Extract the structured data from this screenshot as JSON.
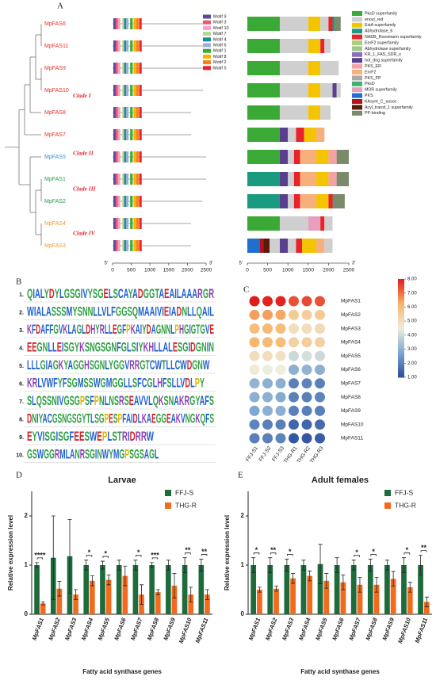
{
  "panel_labels": [
    "A",
    "B",
    "C",
    "D",
    "E"
  ],
  "phylogeny": {
    "genes": [
      {
        "name": "MpFAS6",
        "color": "#e8322a",
        "length": 2420
      },
      {
        "name": "MpFAS11",
        "color": "#e8322a",
        "length": 2420
      },
      {
        "name": "MpFAS9",
        "color": "#e8322a",
        "length": 2420
      },
      {
        "name": "MpFAS10",
        "color": "#e8322a",
        "length": 2420
      },
      {
        "name": "MpFAS8",
        "color": "#e8322a",
        "length": 2100
      },
      {
        "name": "MpFAS7",
        "color": "#e8322a",
        "length": 2100
      },
      {
        "name": "MpFAS5",
        "color": "#3a8fd0",
        "length": 2500
      },
      {
        "name": "MpFAS1",
        "color": "#2e9a4a",
        "length": 2500
      },
      {
        "name": "MpFAS2",
        "color": "#2e9a4a",
        "length": 2400
      },
      {
        "name": "MpFAS4",
        "color": "#f39a2a",
        "length": 2100
      },
      {
        "name": "MpFAS3",
        "color": "#f39a2a",
        "length": 2100
      }
    ],
    "clades": [
      "Clade I",
      "Clade II",
      "Clade III",
      "Clade IV"
    ]
  },
  "motif_legend": [
    {
      "name": "Motif 9",
      "color": "#5b4a9a",
      "start": 20
    },
    {
      "name": "Motif 3",
      "color": "#e8587a",
      "start": 80
    },
    {
      "name": "Motif 10",
      "color": "#f4a3c0",
      "start": 140
    },
    {
      "name": "Motif 7",
      "color": "#b5d98a",
      "start": 260
    },
    {
      "name": "Motif 4",
      "color": "#1a8a9e",
      "start": 310
    },
    {
      "name": "Motif 6",
      "color": "#9ab0d8",
      "start": 360
    },
    {
      "name": "Motif 1",
      "color": "#3aa935",
      "start": 470
    },
    {
      "name": "Motif 8",
      "color": "#f5b400",
      "start": 560
    },
    {
      "name": "Motif 2",
      "color": "#f77f1c",
      "start": 630
    },
    {
      "name": "Motif 5",
      "color": "#e8232a",
      "start": 710
    }
  ],
  "domain_legend": [
    {
      "name": "PksD superfamily",
      "color": "#3aa935"
    },
    {
      "name": "enoyl_red",
      "color": "#cfcfcf"
    },
    {
      "name": "EstA superfamily",
      "color": "#f5c400"
    },
    {
      "name": "Abhydrolase_6",
      "color": "#1a9a7e"
    },
    {
      "name": "NADB_Rossmann superfamily",
      "color": "#e8232a"
    },
    {
      "name": "EnrF2 superfamily",
      "color": "#aacf7a"
    },
    {
      "name": "Abhydrolase superfamily",
      "color": "#9ec98a"
    },
    {
      "name": "KR_1_FAS_SDR_x",
      "color": "#8a6fb8"
    },
    {
      "name": "hot_dog superfamily",
      "color": "#5b3f8f"
    },
    {
      "name": "PKS_ER",
      "color": "#f4a3a3"
    },
    {
      "name": "EnrF2",
      "color": "#f7b07b"
    },
    {
      "name": "PKS_PP",
      "color": "#a9a9a9"
    },
    {
      "name": "PksD",
      "color": "#3cb371"
    },
    {
      "name": "MDR superfamily",
      "color": "#e69fbf"
    },
    {
      "name": "PKS",
      "color": "#1e6fd0"
    },
    {
      "name": "KAsynt_C_assoc",
      "color": "#b5121b"
    },
    {
      "name": "Acyl_transf_1 superfamily",
      "color": "#5a1a0a"
    },
    {
      "name": "PP-binding",
      "color": "#7a8a6a"
    }
  ],
  "domains": [
    [
      [
        0,
        0,
        800
      ],
      [
        1,
        800,
        1500
      ],
      [
        2,
        1500,
        1800
      ],
      [
        1,
        1800,
        2000
      ],
      [
        4,
        2000,
        2100
      ],
      [
        3,
        2100,
        2150
      ],
      [
        17,
        2150,
        2300
      ]
    ],
    [
      [
        0,
        0,
        800
      ],
      [
        1,
        800,
        1500
      ],
      [
        2,
        1500,
        1800
      ],
      [
        4,
        1800,
        1900
      ],
      [
        1,
        1900,
        2050
      ]
    ],
    [
      [
        0,
        0,
        800
      ],
      [
        1,
        800,
        1500
      ],
      [
        2,
        1500,
        1800
      ],
      [
        1,
        1800,
        2250
      ]
    ],
    [
      [
        0,
        0,
        800
      ],
      [
        1,
        800,
        1500
      ],
      [
        2,
        1500,
        1800
      ],
      [
        1,
        1800,
        2100
      ],
      [
        8,
        2100,
        2200
      ],
      [
        1,
        2200,
        2300
      ]
    ],
    [
      [
        0,
        0,
        800
      ],
      [
        1,
        800,
        1500
      ],
      [
        2,
        1500,
        1800
      ],
      [
        1,
        1800,
        2050
      ]
    ],
    [
      [
        0,
        0,
        800
      ],
      [
        8,
        800,
        1000
      ],
      [
        1,
        1000,
        1200
      ],
      [
        4,
        1200,
        1400
      ],
      [
        2,
        1400,
        1700
      ],
      [
        10,
        1700,
        1900
      ]
    ],
    [
      [
        0,
        0,
        800
      ],
      [
        8,
        800,
        1000
      ],
      [
        1,
        1000,
        1150
      ],
      [
        4,
        1150,
        1300
      ],
      [
        10,
        1300,
        1700
      ],
      [
        2,
        1700,
        2000
      ],
      [
        9,
        2000,
        2200
      ],
      [
        17,
        2200,
        2500
      ]
    ],
    [
      [
        3,
        0,
        800
      ],
      [
        8,
        800,
        1000
      ],
      [
        1,
        1000,
        1150
      ],
      [
        4,
        1150,
        1300
      ],
      [
        10,
        1300,
        1700
      ],
      [
        2,
        1700,
        2000
      ],
      [
        9,
        2000,
        2200
      ],
      [
        17,
        2200,
        2500
      ]
    ],
    [
      [
        3,
        0,
        800
      ],
      [
        8,
        800,
        1000
      ],
      [
        1,
        1000,
        1150
      ],
      [
        4,
        1150,
        1300
      ],
      [
        10,
        1300,
        1700
      ],
      [
        2,
        1700,
        2000
      ],
      [
        4,
        2000,
        2100
      ],
      [
        17,
        2100,
        2400
      ]
    ],
    [
      [
        0,
        0,
        800
      ],
      [
        1,
        800,
        1500
      ],
      [
        13,
        1500,
        1800
      ],
      [
        4,
        1800,
        1900
      ],
      [
        1,
        1900,
        2100
      ]
    ],
    [
      [
        14,
        0,
        300
      ],
      [
        15,
        300,
        400
      ],
      [
        16,
        400,
        550
      ],
      [
        1,
        550,
        800
      ],
      [
        8,
        800,
        1000
      ],
      [
        1,
        1000,
        1200
      ],
      [
        4,
        1200,
        1350
      ],
      [
        2,
        1350,
        1700
      ],
      [
        10,
        1700,
        1900
      ],
      [
        1,
        1900,
        2100
      ]
    ]
  ],
  "axis_a": {
    "start_label": "5'",
    "end_label": "3'",
    "xlim": [
      0,
      2500
    ],
    "ticks": [
      0,
      500,
      1000,
      1500,
      2000,
      2500
    ]
  },
  "logo": [
    {
      "label": "1.",
      "sequence": "QIALYDYLGSGIVYSGELSCAYADGGTAEAILAAARGR"
    },
    {
      "label": "2.",
      "sequence": "WIALASSSMYSNNLLVLFGGSQMAAIVIEIADNLLQAIL"
    },
    {
      "label": "3.",
      "sequence": "KFDAFFGVKLAGLDHYRLLEGFPKAIYDAGNNLPHGIGTGVE"
    },
    {
      "label": "4.",
      "sequence": "EEGNLLEISGYKSNGSGNFGLSIYKHLLALESGIDGNIN"
    },
    {
      "label": "5.",
      "sequence": "LLLGIAGKYAGGHSGNLYGGVRRGTCWTLLCWDGNW"
    },
    {
      "label": "6.",
      "sequence": "KRLVWFYFSGMSSWGMGGLLSFCGLHFSLLVDLPY"
    },
    {
      "label": "7.",
      "sequence": "SLQSSNIVGSGPSFPNLNSRSEAVVLQKSNAKRGYAFS"
    },
    {
      "label": "8.",
      "sequence": "DNIYACGSNGSGYTLSGPESPFAIDLKAEGGEAKVNGKQFS"
    },
    {
      "label": "9.",
      "sequence": "EYVISGISGFEESWEPLSTRIDRRW"
    },
    {
      "label": "10.",
      "sequence": "GSWGGRMLANRSGINWYMGPSGSAGL"
    }
  ],
  "chart_data": [
    {
      "type": "heatmap",
      "x": [
        "FFJ-S1",
        "FFJ-S2",
        "FFJ-S3",
        "THG-R1",
        "THG-R2",
        "THG-R3"
      ],
      "categories": [
        "MpFAS1",
        "MpFAS2",
        "MpFAS3",
        "MpFAS4",
        "MpFAS5",
        "MpFAS6",
        "MpFAS7",
        "MpFAS8",
        "MpFAS9",
        "MpFAS10",
        "MpFAS11"
      ],
      "values": [
        [
          8.0,
          7.9,
          7.9,
          7.4,
          7.5,
          7.4
        ],
        [
          6.5,
          6.5,
          6.4,
          5.6,
          5.5,
          5.6
        ],
        [
          6.0,
          6.1,
          6.0,
          5.0,
          5.0,
          5.1
        ],
        [
          6.2,
          6.1,
          6.0,
          5.4,
          5.5,
          5.4
        ],
        [
          5.0,
          5.0,
          4.9,
          4.0,
          4.1,
          4.0
        ],
        [
          4.6,
          4.5,
          4.5,
          3.0,
          3.1,
          3.0
        ],
        [
          3.1,
          3.0,
          3.0,
          2.0,
          2.1,
          2.0
        ],
        [
          3.0,
          3.0,
          2.9,
          2.0,
          2.0,
          2.1
        ],
        [
          2.8,
          3.0,
          3.0,
          2.0,
          2.0,
          2.0
        ],
        [
          2.1,
          2.0,
          2.0,
          1.5,
          1.5,
          1.6
        ],
        [
          2.0,
          2.0,
          2.1,
          1.2,
          1.2,
          1.3
        ]
      ],
      "clim": [
        1,
        8
      ],
      "colorscale": [
        "#2b4d9b",
        "#7ba6cf",
        "#eeeedd",
        "#f7b56b",
        "#e31a1c"
      ],
      "colorbar_ticks": [
        {
          "value": 8,
          "label": "8.00"
        },
        {
          "value": 7,
          "label": "7.00"
        },
        {
          "value": 6,
          "label": "6.00"
        },
        {
          "value": 5,
          "label": "5.00"
        },
        {
          "value": 4,
          "label": "4.00"
        },
        {
          "value": 3,
          "label": "3.00"
        },
        {
          "value": 2,
          "label": "2.00"
        },
        {
          "value": 1,
          "label": "1.00"
        }
      ]
    },
    {
      "type": "bar",
      "title": "Larvae",
      "categories": [
        "MpFAS1",
        "MpFAS2",
        "MpFAS3",
        "MpFAS4",
        "MpFAS5",
        "MpFAS6",
        "MpFAS7",
        "MpFAS8",
        "MpFAS9",
        "MpFAS10",
        "MpFAS11"
      ],
      "series": [
        {
          "name": "FFJ-S",
          "color": "#1e6b3c",
          "values": [
            1.0,
            1.15,
            1.18,
            1.0,
            1.0,
            1.0,
            1.0,
            1.0,
            1.0,
            1.0,
            1.0
          ],
          "errors": [
            0.05,
            0.85,
            0.75,
            0.1,
            0.08,
            0.1,
            0.1,
            0.05,
            0.1,
            0.15,
            0.12
          ]
        },
        {
          "name": "THG-R",
          "color": "#f46a1c",
          "values": [
            0.22,
            0.52,
            0.4,
            0.68,
            0.7,
            0.78,
            0.4,
            0.45,
            0.58,
            0.4,
            0.4
          ],
          "errors": [
            0.03,
            0.15,
            0.1,
            0.1,
            0.1,
            0.2,
            0.2,
            0.05,
            0.25,
            0.15,
            0.1
          ]
        }
      ],
      "significance": [
        "****",
        null,
        null,
        "*",
        "*",
        null,
        "*",
        "***",
        null,
        "**",
        "**"
      ],
      "ylim": [
        0,
        2.5
      ],
      "yticks": [
        0,
        1,
        2
      ],
      "ylabel": "Relative expression level",
      "xlabel": "Fatty acid synthase genes",
      "legend": "top-right"
    },
    {
      "type": "bar",
      "title": "Adult females",
      "categories": [
        "MpFAS1",
        "MpFAS2",
        "MpFAS3",
        "MpFAS4",
        "MpFAS5",
        "MpFAS6",
        "MpFAS7",
        "MpFAS8",
        "MpFAS9",
        "MpFAS10",
        "MpFAS11"
      ],
      "series": [
        {
          "name": "FFJ-S",
          "color": "#1e6b3c",
          "values": [
            1.0,
            1.0,
            1.0,
            1.0,
            1.02,
            1.0,
            1.0,
            1.0,
            1.0,
            1.0,
            1.0
          ],
          "errors": [
            0.15,
            0.15,
            0.12,
            0.1,
            0.4,
            0.15,
            0.1,
            0.12,
            0.1,
            0.15,
            0.2
          ]
        },
        {
          "name": "THG-R",
          "color": "#f46a1c",
          "values": [
            0.5,
            0.52,
            0.73,
            0.78,
            0.68,
            0.65,
            0.6,
            0.6,
            0.72,
            0.55,
            0.25
          ],
          "errors": [
            0.05,
            0.05,
            0.1,
            0.1,
            0.15,
            0.15,
            0.15,
            0.15,
            0.15,
            0.1,
            0.1
          ]
        }
      ],
      "significance": [
        "*",
        "**",
        "*",
        null,
        null,
        null,
        "*",
        "*",
        null,
        "*",
        "**"
      ],
      "ylim": [
        0,
        2.5
      ],
      "yticks": [
        0,
        1,
        2
      ],
      "ylabel": "Relative expression level",
      "xlabel": "Fatty acid synthase genes",
      "legend": "top-right"
    }
  ]
}
